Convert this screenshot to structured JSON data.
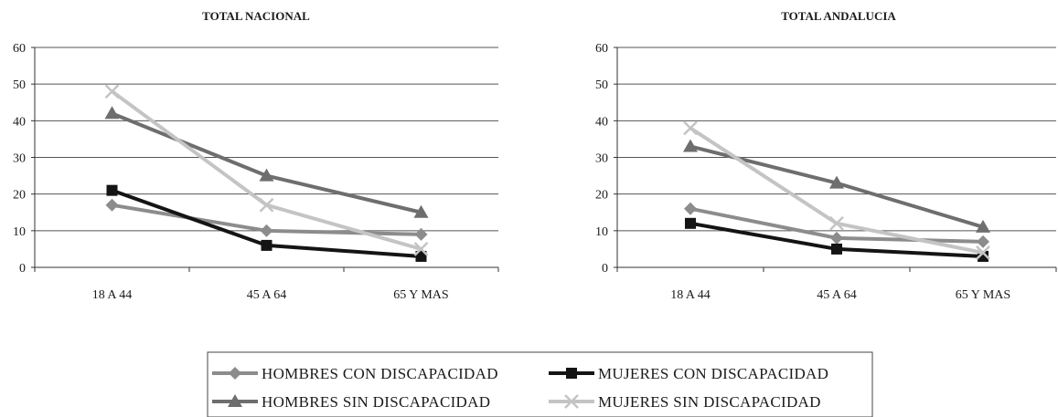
{
  "chart_data": [
    {
      "type": "line",
      "title": "TOTAL NACIONAL",
      "categories": [
        "18 A 44",
        "45 A 64",
        "65 Y MAS"
      ],
      "yticks": [
        0,
        10,
        20,
        30,
        40,
        50,
        60
      ],
      "ylim": [
        0,
        60
      ],
      "grid": true,
      "series": [
        {
          "name": "HOMBRES CON DISCAPACIDAD",
          "values": [
            17,
            10,
            9
          ],
          "color": "#8c8c8c",
          "marker": "diamond"
        },
        {
          "name": "MUJERES CON DISCAPACIDAD",
          "values": [
            21,
            6,
            3
          ],
          "color": "#141414",
          "marker": "square"
        },
        {
          "name": "HOMBRES SIN DISCAPACIDAD",
          "values": [
            42,
            25,
            15
          ],
          "color": "#6e6e6e",
          "marker": "triangle"
        },
        {
          "name": "MUJERES SIN DISCAPACIDAD",
          "values": [
            48,
            17,
            5
          ],
          "color": "#c4c4c4",
          "marker": "x"
        }
      ]
    },
    {
      "type": "line",
      "title": "TOTAL ANDALUCIA",
      "categories": [
        "18 A 44",
        "45 A 64",
        "65 Y MAS"
      ],
      "yticks": [
        0,
        10,
        20,
        30,
        40,
        50,
        60
      ],
      "ylim": [
        0,
        60
      ],
      "grid": true,
      "series": [
        {
          "name": "HOMBRES CON DISCAPACIDAD",
          "values": [
            16,
            8,
            7
          ],
          "color": "#8c8c8c",
          "marker": "diamond"
        },
        {
          "name": "MUJERES CON DISCAPACIDAD",
          "values": [
            12,
            5,
            3
          ],
          "color": "#141414",
          "marker": "square"
        },
        {
          "name": "HOMBRES SIN DISCAPACIDAD",
          "values": [
            33,
            23,
            11
          ],
          "color": "#6e6e6e",
          "marker": "triangle"
        },
        {
          "name": "MUJERES SIN DISCAPACIDAD",
          "values": [
            38,
            12,
            4
          ],
          "color": "#c4c4c4",
          "marker": "x"
        }
      ]
    }
  ],
  "legend": {
    "placement": "bottom-center",
    "items": [
      {
        "label": "HOMBRES CON DISCAPACIDAD",
        "color": "#8c8c8c",
        "marker": "diamond"
      },
      {
        "label": "MUJERES CON DISCAPACIDAD",
        "color": "#141414",
        "marker": "square"
      },
      {
        "label": "HOMBRES SIN DISCAPACIDAD",
        "color": "#6e6e6e",
        "marker": "triangle"
      },
      {
        "label": "MUJERES SIN DISCAPACIDAD",
        "color": "#c4c4c4",
        "marker": "x"
      }
    ]
  }
}
